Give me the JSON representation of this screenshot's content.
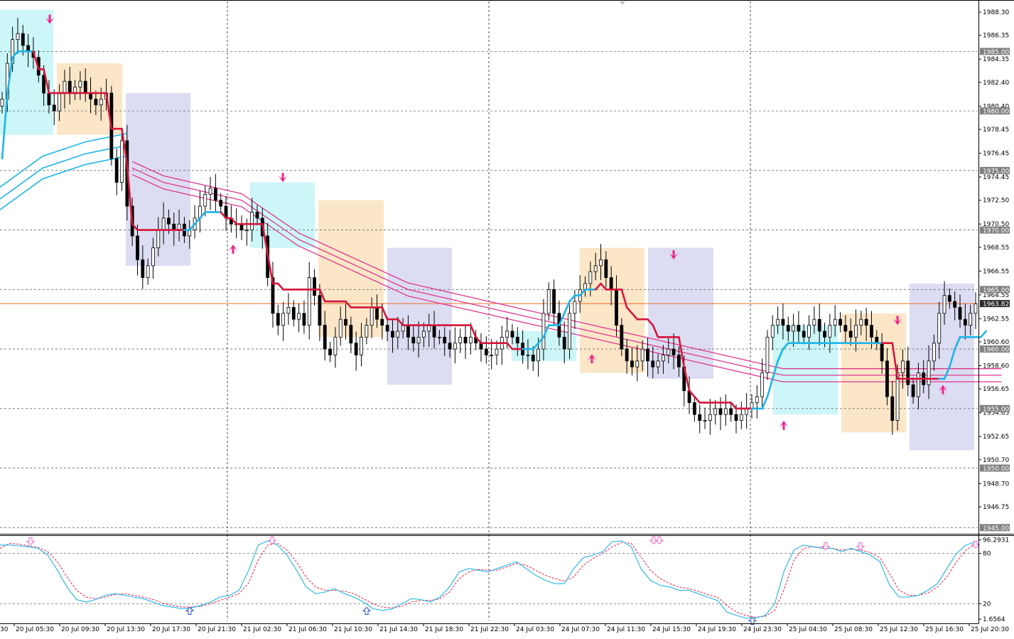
{
  "chart_data": {
    "type": "candlestick",
    "instrument_title": "",
    "colors": {
      "background": "#ffffff",
      "grid": "#6b6b6b",
      "candle": "#000000",
      "trend_up": "#1eb4e6",
      "trend_down": "#d4163c",
      "envelope": "#e0368f",
      "envelope_low": "#1eb4e6",
      "arrow": "#f0248a",
      "box_cyan": "#ccf6f8",
      "box_orange": "#fbe6c8",
      "box_purple": "#dcdcf2",
      "stoch_main": "#1eb4e6",
      "stoch_signal": "#e8204a",
      "stoch_arrow_sell": "#f066c8",
      "stoch_arrow_buy": "#2848c8",
      "price_line": "#ec6a20",
      "tag_bg": "#808080",
      "tag_current_bg": "#2a2a2a"
    },
    "main_panel": {
      "y_range": [
        1944.6,
        1989.2
      ],
      "y_ticks": [
        "1988.30",
        "1986.35",
        "1984.35",
        "1982.40",
        "1980.40",
        "1978.45",
        "1976.45",
        "1974.45",
        "1972.50",
        "1970.50",
        "1968.55",
        "1966.55",
        "1964.55",
        "1962.55",
        "1960.60",
        "1958.60",
        "1956.65",
        "1954.65",
        "1952.65",
        "1950.70",
        "1948.70",
        "1946.75"
      ],
      "horizontal_levels": [
        "1985.00",
        "1980.00",
        "1975.00",
        "1970.00",
        "1965.00",
        "1960.00",
        "1955.00",
        "1950.00",
        "1945.00"
      ],
      "current_price": "1963.82"
    },
    "stochastic": {
      "y_range": [
        0,
        100
      ],
      "labels": [
        "96.2931",
        "80",
        "20",
        "1.6564"
      ],
      "levels": [
        80,
        20
      ],
      "main": [
        90,
        90,
        89,
        88,
        86,
        78,
        60,
        40,
        25,
        22,
        25,
        30,
        32,
        30,
        28,
        26,
        22,
        18,
        16,
        14,
        15,
        18,
        22,
        28,
        30,
        36,
        60,
        90,
        95,
        90,
        78,
        60,
        40,
        32,
        34,
        38,
        32,
        28,
        22,
        14,
        12,
        14,
        20,
        26,
        25,
        22,
        28,
        40,
        58,
        62,
        60,
        58,
        62,
        66,
        70,
        62,
        54,
        48,
        44,
        44,
        62,
        75,
        78,
        82,
        94,
        95,
        88,
        62,
        48,
        42,
        40,
        36,
        36,
        32,
        28,
        24,
        10,
        6,
        3,
        3,
        6,
        20,
        60,
        84,
        90,
        88,
        86,
        86,
        82,
        86,
        82,
        78,
        70,
        42,
        28,
        28,
        30,
        36,
        44,
        62,
        80,
        90,
        94
      ],
      "signal": [
        86,
        92,
        91,
        89,
        87,
        82,
        70,
        52,
        36,
        28,
        26,
        28,
        31,
        32,
        30,
        28,
        25,
        21,
        18,
        16,
        16,
        17,
        20,
        24,
        28,
        32,
        45,
        72,
        90,
        92,
        84,
        70,
        52,
        40,
        36,
        36,
        35,
        32,
        26,
        20,
        16,
        15,
        17,
        22,
        24,
        24,
        26,
        34,
        50,
        58,
        61,
        60,
        60,
        64,
        68,
        66,
        60,
        54,
        50,
        47,
        52,
        66,
        74,
        80,
        88,
        93,
        92,
        76,
        60,
        50,
        44,
        40,
        38,
        35,
        31,
        28,
        18,
        10,
        6,
        4,
        5,
        12,
        38,
        72,
        86,
        88,
        87,
        86,
        84,
        85,
        84,
        81,
        75,
        56,
        36,
        30,
        30,
        33,
        40,
        52,
        70,
        84,
        92
      ]
    },
    "time_labels": [
      "20 Jul 05:30",
      "20 Jul 09:30",
      "20 Jul 13:30",
      "20 Jul 17:30",
      "20 Jul 21:30",
      "21 Jul 02:30",
      "21 Jul 06:30",
      "21 Jul 10:30",
      "21 Jul 14:30",
      "21 Jul 18:30",
      "21 Jul 22:30",
      "24 Jul 03:30",
      "24 Jul 07:30",
      "24 Jul 11:30",
      "24 Jul 15:30",
      "24 Jul 19:30",
      "24 Jul 23:30",
      "25 Jul 04:30",
      "25 Jul 08:30",
      "25 Jul 12:30",
      "25 Jul 16:30",
      "25 Jul 20:30"
    ],
    "time_label_lead": "30",
    "closes": [
      1981.0,
      1984.0,
      1986.0,
      1986.5,
      1985.5,
      1985.0,
      1984.5,
      1983.0,
      1981.5,
      1980.5,
      1980.0,
      1981.5,
      1982.5,
      1981.5,
      1982.0,
      1982.5,
      1981.5,
      1981.0,
      1980.5,
      1981.0,
      1981.5,
      1976.0,
      1974.0,
      1977.5,
      1972.0,
      1969.5,
      1967.5,
      1966.0,
      1967.0,
      1968.5,
      1970.0,
      1971.0,
      1970.5,
      1970.0,
      1970.5,
      1969.5,
      1970.0,
      1971.0,
      1972.0,
      1973.0,
      1973.5,
      1972.5,
      1972.0,
      1971.0,
      1970.5,
      1970.5,
      1970.0,
      1970.0,
      1971.5,
      1971.0,
      1969.5,
      1966.0,
      1963.0,
      1962.0,
      1963.0,
      1963.5,
      1962.5,
      1963.0,
      1962.0,
      1966.0,
      1964.5,
      1962.0,
      1960.0,
      1959.5,
      1961.0,
      1962.5,
      1962.0,
      1960.5,
      1959.5,
      1961.0,
      1962.0,
      1963.5,
      1962.5,
      1962.0,
      1961.5,
      1961.0,
      1961.5,
      1962.0,
      1961.0,
      1960.5,
      1961.0,
      1961.5,
      1962.0,
      1961.0,
      1961.0,
      1960.5,
      1960.0,
      1960.5,
      1961.0,
      1960.5,
      1961.0,
      1960.5,
      1960.0,
      1959.5,
      1959.5,
      1960.0,
      1961.0,
      1961.5,
      1961.0,
      1960.5,
      1959.5,
      1959.5,
      1959.0,
      1960.0,
      1963.0,
      1965.0,
      1963.0,
      1961.0,
      1960.0,
      1963.0,
      1964.0,
      1965.0,
      1965.5,
      1966.5,
      1967.0,
      1967.5,
      1966.0,
      1965.0,
      1962.0,
      1960.0,
      1959.0,
      1958.5,
      1959.0,
      1960.0,
      1959.0,
      1958.5,
      1959.0,
      1959.5,
      1960.0,
      1959.5,
      1958.5,
      1956.5,
      1955.5,
      1954.5,
      1954.0,
      1954.0,
      1954.5,
      1955.0,
      1954.5,
      1955.0,
      1954.5,
      1954.0,
      1954.5,
      1955.0,
      1955.5,
      1956.0,
      1958.0,
      1961.0,
      1962.0,
      1962.5,
      1962.0,
      1961.5,
      1962.0,
      1961.5,
      1961.0,
      1962.0,
      1962.5,
      1961.5,
      1961.0,
      1962.0,
      1962.5,
      1962.0,
      1961.5,
      1961.0,
      1962.0,
      1962.5,
      1962.0,
      1961.0,
      1960.5,
      1959.0,
      1956.0,
      1954.0,
      1958.0,
      1959.0,
      1957.0,
      1956.0,
      1958.0,
      1957.0,
      1959.0,
      1960.5,
      1963.0,
      1964.5,
      1964.0,
      1963.5,
      1962.5,
      1962.0,
      1963.0,
      1963.8
    ],
    "trend_line": [
      1976,
      1981.5,
      1984.5,
      1985.0,
      1985.0,
      1985.0,
      1985.0,
      1983.5,
      1983.5,
      1981.5,
      1981.5,
      1981.5,
      1981.5,
      1981.5,
      1981.5,
      1981.5,
      1981.5,
      1981.5,
      1981.5,
      1981.5,
      1981.5,
      1978.5,
      1978.5,
      1978.5,
      1975.5,
      1970.5,
      1970.0,
      1970.0,
      1970.0,
      1970.0,
      1970.0,
      1970.0,
      1970.0,
      1970.0,
      1970.0,
      1970.0,
      1970.0,
      1970.5,
      1971.0,
      1971.5,
      1971.5,
      1971.5,
      1971.5,
      1971.0,
      1971.0,
      1970.5,
      1970.5,
      1970.5,
      1970.5,
      1970.5,
      1970.5,
      1968.0,
      1965.5,
      1965.5,
      1965.0,
      1965.0,
      1965.0,
      1965.0,
      1965.0,
      1965.0,
      1965.0,
      1965.0,
      1964.0,
      1964.0,
      1964.0,
      1964.0,
      1964.0,
      1963.5,
      1963.5,
      1963.5,
      1963.5,
      1963.5,
      1963.5,
      1963.5,
      1962.5,
      1962.5,
      1962.5,
      1962.0,
      1962.0,
      1962.0,
      1962.0,
      1962.0,
      1962.0,
      1962.0,
      1962.0,
      1962.0,
      1962.0,
      1962.0,
      1962.0,
      1962.0,
      1962.0,
      1961.0,
      1960.5,
      1960.5,
      1960.5,
      1960.5,
      1960.5,
      1960.5,
      1960.0,
      1960.0,
      1960.0,
      1960.0,
      1960.0,
      1960.5,
      1961.0,
      1962.0,
      1962.0,
      1962.0,
      1963.0,
      1964.0,
      1964.5,
      1964.5,
      1965.0,
      1965.0,
      1965.0,
      1965.5,
      1965.0,
      1965.0,
      1965.0,
      1965.0,
      1963.5,
      1963.0,
      1962.5,
      1962.5,
      1962.5,
      1962.0,
      1961.0,
      1961.0,
      1961.0,
      1961.0,
      1961.0,
      1958.5,
      1956.5,
      1956.0,
      1955.5,
      1955.5,
      1955.5,
      1955.5,
      1955.5,
      1955.5,
      1955.5,
      1955.0,
      1955.0,
      1955.0,
      1955.0,
      1955.0,
      1955.0,
      1956.0,
      1957.5,
      1959.0,
      1960.0,
      1960.5,
      1960.5,
      1960.5,
      1960.5,
      1960.5,
      1960.5,
      1960.5,
      1960.5,
      1960.5,
      1960.5,
      1960.5,
      1960.5,
      1960.5,
      1960.5,
      1960.5,
      1960.5,
      1960.5,
      1960.5,
      1960.5,
      1960.5,
      1960.5,
      1957.5,
      1957.5,
      1957.5,
      1957.5,
      1957.5,
      1957.5,
      1957.5,
      1957.5,
      1957.5,
      1957.5,
      1958.5,
      1960.0,
      1961.0,
      1961.0,
      1961.0,
      1961.0,
      1961.0,
      1961.5
    ],
    "trend_direction": [
      "up",
      "up",
      "up",
      "up",
      "up",
      "up",
      "up",
      "down",
      "down",
      "down",
      "down",
      "down",
      "down",
      "down",
      "down",
      "down",
      "down",
      "down",
      "down",
      "down",
      "down",
      "down",
      "down",
      "down",
      "down",
      "down",
      "down",
      "down",
      "down",
      "down",
      "down",
      "down",
      "down",
      "down",
      "down",
      "down",
      "up",
      "up",
      "up",
      "up",
      "up",
      "up",
      "up",
      "down",
      "down",
      "down",
      "down",
      "down",
      "down",
      "down",
      "down",
      "down",
      "down",
      "down",
      "down",
      "down",
      "down",
      "down",
      "down",
      "down",
      "down",
      "down",
      "down",
      "down",
      "down",
      "down",
      "down",
      "down",
      "down",
      "down",
      "down",
      "down",
      "down",
      "down",
      "down",
      "down",
      "down",
      "down",
      "down",
      "down",
      "down",
      "down",
      "down",
      "down",
      "down",
      "down",
      "down",
      "down",
      "down",
      "down",
      "down",
      "down",
      "down",
      "down",
      "down",
      "down",
      "down",
      "down",
      "down",
      "down",
      "down",
      "up",
      "up",
      "up",
      "up",
      "up",
      "up",
      "up",
      "up",
      "up",
      "up",
      "up",
      "up",
      "up",
      "up",
      "down",
      "down",
      "down",
      "down",
      "down",
      "down",
      "down",
      "down",
      "down",
      "down",
      "down",
      "down",
      "down",
      "down",
      "down",
      "down",
      "down",
      "down",
      "down",
      "down",
      "down",
      "down",
      "down",
      "down",
      "down",
      "down",
      "down",
      "down",
      "down",
      "down",
      "up",
      "up",
      "up",
      "up",
      "up",
      "up",
      "up",
      "up",
      "up",
      "up",
      "up",
      "up",
      "up",
      "up",
      "up",
      "up",
      "up",
      "up",
      "up",
      "up",
      "up",
      "up",
      "up",
      "up",
      "up",
      "down",
      "down",
      "down",
      "down",
      "down",
      "down",
      "down",
      "down",
      "down",
      "down",
      "down",
      "up",
      "up",
      "up",
      "up",
      "up",
      "up",
      "up",
      "up",
      "up"
    ],
    "envelope_center": [
      1973.5,
      1974.5,
      1975.2,
      1975.8,
      1976.2,
      1976.6,
      1977.0,
      1977.2,
      1977.4,
      1977.5,
      1977.6,
      1977.6,
      1977.6,
      1977.5,
      1977.4,
      1977.2,
      1977.0,
      1976.8,
      1976.6,
      1976.4,
      1976.2,
      1976.0,
      1975.8,
      1975.6,
      1975.4,
      1975.2,
      1975.0,
      1974.8,
      1974.6,
      1974.4,
      1974.2,
      1974.0,
      1973.9,
      1973.8,
      1973.7,
      1973.6,
      1973.5,
      1973.4,
      1973.3,
      1973.2,
      1973.1,
      1973.0,
      1972.9,
      1972.8,
      1972.7,
      1972.6,
      1972.5,
      1972.2,
      1971.9,
      1971.6,
      1971.3,
      1971.0,
      1970.7,
      1970.4,
      1970.1,
      1969.8,
      1969.5,
      1969.2,
      1969.0,
      1968.8,
      1968.6,
      1968.4,
      1968.2,
      1968.0,
      1967.8,
      1967.6,
      1967.4,
      1967.2,
      1967.0,
      1966.8,
      1966.6,
      1966.4,
      1966.2,
      1966.0,
      1965.8,
      1965.6,
      1965.4,
      1965.2,
      1965.0,
      1964.9,
      1964.8,
      1964.7,
      1964.6,
      1964.5,
      1964.4,
      1964.3,
      1964.2,
      1964.1,
      1964.0,
      1963.9,
      1963.8,
      1963.7,
      1963.6,
      1963.5,
      1963.4,
      1963.3,
      1963.2,
      1963.1,
      1963.0,
      1962.9,
      1962.8,
      1962.7,
      1962.6,
      1962.5,
      1962.4,
      1962.3,
      1962.2,
      1962.1,
      1962.0,
      1961.9,
      1961.8,
      1961.7,
      1961.6,
      1961.5,
      1961.4,
      1961.3,
      1961.2,
      1961.1,
      1961.0,
      1960.9,
      1960.8,
      1960.7,
      1960.6,
      1960.5,
      1960.4,
      1960.3,
      1960.2,
      1960.1,
      1960.0,
      1959.9,
      1959.8,
      1959.7,
      1959.6,
      1959.5,
      1959.4,
      1959.3,
      1959.2,
      1959.1,
      1959.0,
      1958.9,
      1958.8,
      1958.7,
      1958.6,
      1958.5,
      1958.4,
      1958.3,
      1958.2,
      1958.1,
      1958.0,
      1957.9,
      1957.8,
      1957.8,
      1957.8,
      1957.8,
      1957.8,
      1957.8,
      1957.8,
      1957.8,
      1957.8,
      1957.8,
      1957.8,
      1957.8,
      1957.8,
      1957.8,
      1957.8,
      1957.8,
      1957.8,
      1957.8,
      1957.8,
      1957.8,
      1957.8,
      1957.8,
      1957.8,
      1957.8,
      1957.8,
      1957.8,
      1957.8,
      1957.8,
      1957.8,
      1957.8,
      1957.8,
      1957.8,
      1957.8,
      1957.8,
      1957.8,
      1957.8,
      1957.8,
      1957.8,
      1957.8,
      1957.8,
      1957.8,
      1957.8,
      1957.8
    ]
  }
}
